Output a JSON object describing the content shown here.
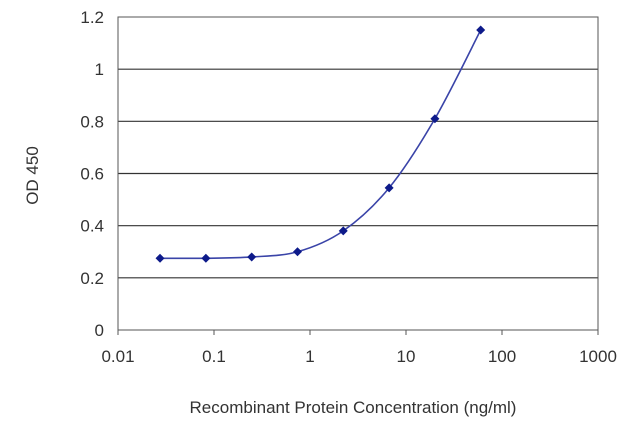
{
  "chart_data": {
    "type": "scatter",
    "title": "",
    "xlabel": "Recombinant Protein Concentration (ng/ml)",
    "ylabel": "OD 450",
    "x_scale": "log",
    "xlim": [
      0.01,
      1000
    ],
    "ylim": [
      0,
      1.2
    ],
    "x_ticks": [
      0.01,
      0.1,
      1,
      10,
      100,
      1000
    ],
    "x_tick_labels": [
      "0.01",
      "0.1",
      "1",
      "10",
      "100",
      "1000"
    ],
    "y_ticks": [
      0,
      0.2,
      0.4,
      0.6,
      0.8,
      1,
      1.2
    ],
    "y_tick_labels": [
      "0",
      "0.2",
      "0.4",
      "0.6",
      "0.8",
      "1",
      "1.2"
    ],
    "grid": "horizontal",
    "legend": "none",
    "series": [
      {
        "x": [
          0.0274,
          0.0823,
          0.247,
          0.741,
          2.22,
          6.67,
          20,
          60
        ],
        "y": [
          0.275,
          0.275,
          0.28,
          0.3,
          0.38,
          0.545,
          0.81,
          1.15
        ]
      }
    ],
    "colors": {
      "series": "#3a44a8",
      "marker": "#0d1a8a",
      "grid": "#333333",
      "axis": "#555555"
    }
  }
}
